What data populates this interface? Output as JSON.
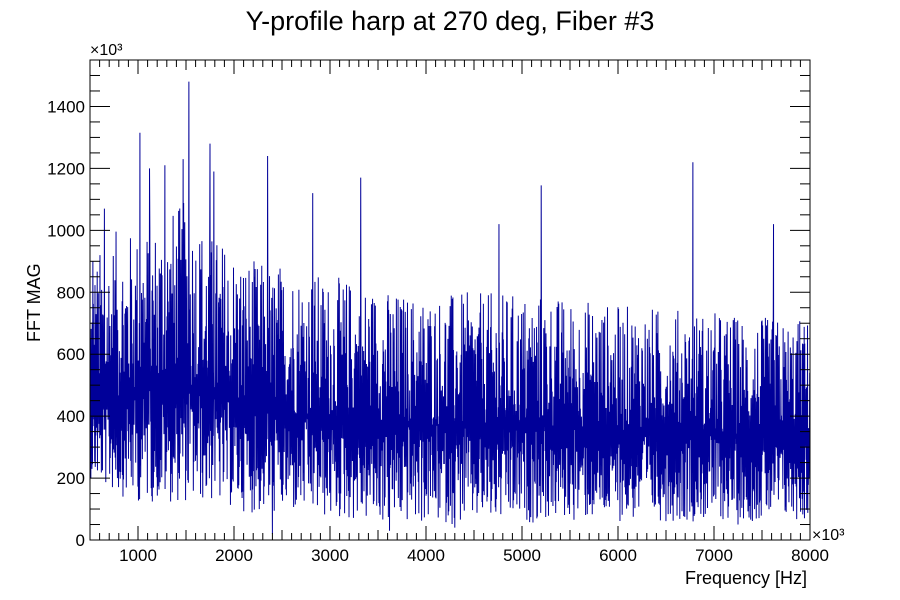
{
  "chart_data": {
    "type": "line",
    "title": "Y-profile harp at 270 deg, Fiber #3",
    "xlabel": "Frequency [Hz]",
    "ylabel": "FFT MAG",
    "x_multiplier": "×10³",
    "y_multiplier": "×10³",
    "xlim": [
      500,
      8000
    ],
    "ylim": [
      0,
      1550
    ],
    "x_ticks": [
      1000,
      2000,
      3000,
      4000,
      5000,
      6000,
      7000,
      8000
    ],
    "y_ticks": [
      0,
      200,
      400,
      600,
      800,
      1000,
      1200,
      1400
    ],
    "line_color": "#000099",
    "grid": false,
    "legend": "none",
    "envelope": {
      "x": [
        500,
        750,
        1000,
        1250,
        1500,
        1750,
        2000,
        2250,
        2500,
        2750,
        3000,
        3250,
        3500,
        3750,
        4000,
        4250,
        4500,
        4750,
        5000,
        5250,
        5500,
        5750,
        6000,
        6250,
        6500,
        6750,
        7000,
        7250,
        7500,
        7750,
        8000
      ],
      "mean": [
        420,
        450,
        480,
        490,
        490,
        470,
        440,
        420,
        410,
        400,
        390,
        390,
        380,
        380,
        370,
        370,
        370,
        370,
        370,
        370,
        360,
        360,
        350,
        350,
        350,
        340,
        340,
        330,
        330,
        320,
        320
      ],
      "typical_max": [
        900,
        1000,
        1000,
        1050,
        1100,
        1000,
        950,
        900,
        900,
        880,
        850,
        850,
        820,
        800,
        800,
        800,
        800,
        800,
        800,
        800,
        780,
        780,
        760,
        760,
        750,
        750,
        740,
        730,
        720,
        720,
        720
      ],
      "typical_min": [
        200,
        150,
        120,
        120,
        120,
        120,
        100,
        80,
        80,
        80,
        60,
        60,
        50,
        50,
        50,
        50,
        50,
        50,
        50,
        60,
        60,
        60,
        60,
        60,
        60,
        60,
        60,
        60,
        60,
        60,
        60
      ]
    },
    "peaks": [
      {
        "x": 530,
        "y": 900
      },
      {
        "x": 650,
        "y": 1070
      },
      {
        "x": 1020,
        "y": 1315
      },
      {
        "x": 1120,
        "y": 1200
      },
      {
        "x": 1280,
        "y": 1210
      },
      {
        "x": 1470,
        "y": 1230
      },
      {
        "x": 1530,
        "y": 1480
      },
      {
        "x": 1750,
        "y": 1280
      },
      {
        "x": 1790,
        "y": 1190
      },
      {
        "x": 2350,
        "y": 1240
      },
      {
        "x": 2820,
        "y": 1120
      },
      {
        "x": 3320,
        "y": 1170
      },
      {
        "x": 4760,
        "y": 1020
      },
      {
        "x": 5200,
        "y": 1145
      },
      {
        "x": 6780,
        "y": 1220
      },
      {
        "x": 7620,
        "y": 1020
      }
    ],
    "dips": [
      {
        "x": 2400,
        "y": 20
      },
      {
        "x": 3620,
        "y": 30
      },
      {
        "x": 4300,
        "y": 40
      },
      {
        "x": 7250,
        "y": 50
      }
    ],
    "n_samples": 2600
  }
}
